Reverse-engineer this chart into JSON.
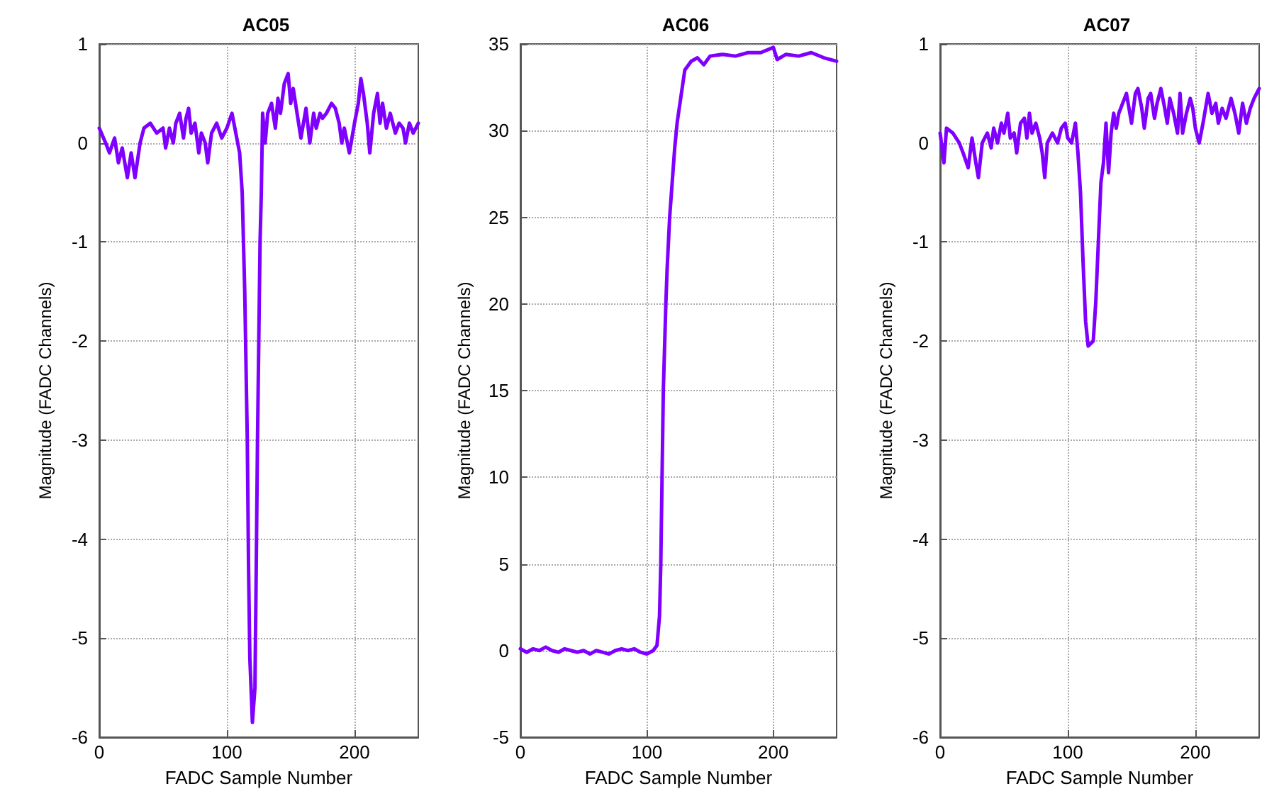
{
  "chart_data": [
    {
      "type": "line",
      "title": "AC05",
      "xlabel": "FADC Sample Number",
      "ylabel": "Magnitude (FADC Channels)",
      "xlim": [
        0,
        250
      ],
      "xticks": [
        0,
        100,
        200
      ],
      "ylim": [
        -6,
        1
      ],
      "yticks": [
        -6,
        -5,
        -4,
        -3,
        -2,
        -1,
        0,
        1
      ],
      "grid": true,
      "marker": "none",
      "line_style": "solid",
      "series": [
        {
          "color": "#7f00ff",
          "x": [
            0,
            5,
            8,
            12,
            15,
            18,
            22,
            25,
            28,
            32,
            35,
            40,
            45,
            50,
            52,
            55,
            58,
            60,
            63,
            66,
            68,
            70,
            72,
            75,
            78,
            80,
            83,
            85,
            88,
            92,
            96,
            100,
            104,
            107,
            110,
            112,
            114,
            116,
            117,
            118,
            120,
            122,
            123,
            124,
            125,
            126,
            127,
            128,
            130,
            132,
            135,
            138,
            140,
            142,
            145,
            148,
            150,
            152,
            155,
            158,
            160,
            162,
            165,
            168,
            170,
            173,
            175,
            178,
            182,
            185,
            188,
            190,
            192,
            196,
            200,
            203,
            205,
            207,
            210,
            212,
            215,
            218,
            220,
            222,
            225,
            228,
            232,
            235,
            238,
            240,
            243,
            246,
            250
          ],
          "values": [
            0.15,
            0.0,
            -0.1,
            0.05,
            -0.2,
            -0.05,
            -0.35,
            -0.1,
            -0.35,
            0.0,
            0.15,
            0.2,
            0.1,
            0.15,
            -0.05,
            0.15,
            0.0,
            0.2,
            0.3,
            0.05,
            0.25,
            0.35,
            0.1,
            0.2,
            -0.1,
            0.1,
            0.0,
            -0.2,
            0.1,
            0.2,
            0.05,
            0.15,
            0.3,
            0.1,
            -0.1,
            -0.5,
            -1.5,
            -3.0,
            -4.3,
            -5.2,
            -5.85,
            -5.5,
            -4.3,
            -3.0,
            -2.0,
            -1.0,
            -0.5,
            0.3,
            0.0,
            0.3,
            0.4,
            0.15,
            0.45,
            0.3,
            0.6,
            0.7,
            0.4,
            0.55,
            0.3,
            0.05,
            0.2,
            0.35,
            0.0,
            0.3,
            0.15,
            0.3,
            0.25,
            0.3,
            0.4,
            0.35,
            0.2,
            0.0,
            0.15,
            -0.1,
            0.2,
            0.4,
            0.65,
            0.5,
            0.2,
            -0.1,
            0.3,
            0.5,
            0.2,
            0.4,
            0.15,
            0.3,
            0.1,
            0.2,
            0.15,
            0.0,
            0.2,
            0.1,
            0.2
          ]
        }
      ]
    },
    {
      "type": "line",
      "title": "AC06",
      "xlabel": "FADC Sample Number",
      "ylabel": "Magnitude (FADC Channels)",
      "xlim": [
        0,
        250
      ],
      "xticks": [
        0,
        100,
        200
      ],
      "ylim": [
        -5,
        35
      ],
      "yticks": [
        -5,
        0,
        5,
        10,
        15,
        20,
        25,
        30,
        35
      ],
      "grid": true,
      "marker": "none",
      "line_style": "solid",
      "series": [
        {
          "color": "#7f00ff",
          "x": [
            0,
            5,
            10,
            15,
            20,
            25,
            30,
            35,
            40,
            45,
            50,
            55,
            60,
            65,
            70,
            75,
            80,
            85,
            90,
            95,
            100,
            105,
            108,
            110,
            111,
            112,
            113,
            115,
            116,
            118,
            120,
            122,
            124,
            127,
            130,
            135,
            140,
            145,
            150,
            160,
            170,
            180,
            190,
            200,
            203,
            210,
            220,
            230,
            240,
            250
          ],
          "values": [
            0.1,
            -0.1,
            0.1,
            0.0,
            0.2,
            0.0,
            -0.1,
            0.1,
            0.0,
            -0.1,
            0.0,
            -0.2,
            0.0,
            -0.1,
            -0.2,
            0.0,
            0.1,
            0.0,
            0.1,
            -0.1,
            -0.2,
            0.0,
            0.3,
            2,
            5,
            10,
            15,
            20,
            22,
            25,
            27,
            29,
            30.5,
            32,
            33.5,
            34,
            34.2,
            33.8,
            34.3,
            34.4,
            34.3,
            34.5,
            34.5,
            34.8,
            34.1,
            34.4,
            34.3,
            34.5,
            34.2,
            34.0
          ]
        }
      ]
    },
    {
      "type": "line",
      "title": "AC07",
      "xlabel": "FADC Sample Number",
      "ylabel": "Magnitude (FADC Channels)",
      "xlim": [
        0,
        250
      ],
      "xticks": [
        0,
        100,
        200
      ],
      "ylim": [
        -6,
        1
      ],
      "yticks": [
        -6,
        -5,
        -4,
        -3,
        -2,
        -1,
        0,
        1
      ],
      "grid": true,
      "marker": "none",
      "line_style": "solid",
      "series": [
        {
          "color": "#7f00ff",
          "x": [
            0,
            3,
            5,
            10,
            15,
            18,
            22,
            25,
            28,
            30,
            33,
            37,
            40,
            42,
            45,
            48,
            50,
            53,
            55,
            58,
            60,
            63,
            66,
            68,
            70,
            72,
            75,
            78,
            80,
            82,
            84,
            88,
            92,
            95,
            98,
            100,
            103,
            106,
            108,
            110,
            112,
            114,
            116,
            120,
            122,
            124,
            126,
            128,
            130,
            132,
            134,
            136,
            138,
            140,
            143,
            146,
            148,
            150,
            153,
            155,
            158,
            160,
            163,
            165,
            168,
            170,
            173,
            176,
            178,
            180,
            183,
            186,
            188,
            190,
            193,
            196,
            198,
            200,
            203,
            206,
            208,
            210,
            213,
            216,
            218,
            221,
            224,
            228,
            231,
            234,
            237,
            240,
            243,
            246,
            250
          ],
          "values": [
            0.1,
            -0.2,
            0.15,
            0.1,
            0.0,
            -0.1,
            -0.25,
            0.05,
            -0.2,
            -0.35,
            0.0,
            0.1,
            -0.05,
            0.15,
            0.0,
            0.2,
            0.1,
            0.3,
            0.05,
            0.1,
            -0.1,
            0.2,
            0.25,
            0.05,
            0.3,
            0.1,
            0.2,
            0.05,
            -0.1,
            -0.35,
            0.0,
            0.1,
            0.0,
            0.15,
            0.2,
            0.05,
            0.0,
            0.2,
            -0.1,
            -0.5,
            -1.2,
            -1.8,
            -2.05,
            -2.0,
            -1.6,
            -1.0,
            -0.4,
            -0.2,
            0.2,
            -0.3,
            0.1,
            0.3,
            0.15,
            0.3,
            0.4,
            0.5,
            0.35,
            0.2,
            0.5,
            0.55,
            0.35,
            0.15,
            0.45,
            0.5,
            0.25,
            0.4,
            0.55,
            0.35,
            0.2,
            0.45,
            0.3,
            0.1,
            0.5,
            0.1,
            0.3,
            0.45,
            0.35,
            0.15,
            0.0,
            0.2,
            0.35,
            0.5,
            0.3,
            0.4,
            0.2,
            0.35,
            0.25,
            0.45,
            0.3,
            0.1,
            0.4,
            0.2,
            0.35,
            0.45,
            0.55
          ]
        }
      ]
    }
  ]
}
